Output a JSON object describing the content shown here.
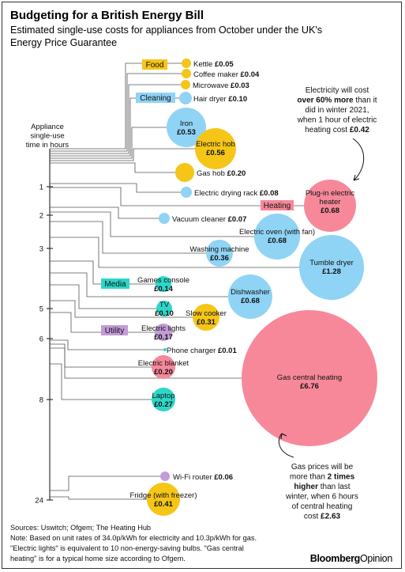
{
  "header": {
    "title": "Budgeting for a British Energy Bill",
    "subtitle_line1": "Estimated single-use costs for appliances from October under the UK's",
    "subtitle_line2": "Energy Price Guarantee"
  },
  "colors": {
    "Food": "#f5c518",
    "Cleaning": "#8fd3f5",
    "Heating": "#f7889a",
    "Media": "#2cd7c9",
    "Utility": "#c39bd7",
    "axis": "#555555"
  },
  "chart_data": {
    "type": "bubble-timeline",
    "axis": {
      "title_lines": [
        "Appliance",
        "single-use",
        "time in hours"
      ],
      "ticks": [
        "1",
        "2",
        "3",
        "5",
        "6",
        "8",
        "24"
      ]
    },
    "categories": [
      {
        "name": "Food"
      },
      {
        "name": "Cleaning"
      },
      {
        "name": "Heating"
      },
      {
        "name": "Media"
      },
      {
        "name": "Utility"
      }
    ],
    "items": [
      {
        "name": "Kettle",
        "cost": "£0.05",
        "value": 0.05,
        "category": "Food"
      },
      {
        "name": "Coffee maker",
        "cost": "£0.04",
        "value": 0.04,
        "category": "Food"
      },
      {
        "name": "Microwave",
        "cost": "£0.03",
        "value": 0.03,
        "category": "Food"
      },
      {
        "name": "Hair dryer",
        "cost": "£0.10",
        "value": 0.1,
        "category": "Cleaning"
      },
      {
        "name": "Iron",
        "cost": "£0.53",
        "value": 0.53,
        "category": "Cleaning"
      },
      {
        "name": "Electric hob",
        "cost": "£0.56",
        "value": 0.56,
        "category": "Food"
      },
      {
        "name": "Gas hob",
        "cost": "£0.20",
        "value": 0.2,
        "category": "Food"
      },
      {
        "name": "Electric drying rack",
        "cost": "£0.08",
        "value": 0.08,
        "category": "Cleaning"
      },
      {
        "name": "Plug-in electric heater",
        "cost": "£0.68",
        "value": 0.68,
        "category": "Heating"
      },
      {
        "name": "Vacuum cleaner",
        "cost": "£0.07",
        "value": 0.07,
        "category": "Cleaning"
      },
      {
        "name": "Electric oven (with fan)",
        "cost": "£0.68",
        "value": 0.68,
        "category": "Cleaning"
      },
      {
        "name": "Washing machine",
        "cost": "£0.36",
        "value": 0.36,
        "category": "Cleaning"
      },
      {
        "name": "Tumble dryer",
        "cost": "£1.28",
        "value": 1.28,
        "category": "Cleaning"
      },
      {
        "name": "Games console",
        "cost": "£0.14",
        "value": 0.14,
        "category": "Media"
      },
      {
        "name": "Dishwasher",
        "cost": "£0.68",
        "value": 0.68,
        "category": "Cleaning"
      },
      {
        "name": "TV",
        "cost": "£0.10",
        "value": 0.1,
        "category": "Media"
      },
      {
        "name": "Slow cooker",
        "cost": "£0.31",
        "value": 0.31,
        "category": "Food"
      },
      {
        "name": "Electric lights",
        "cost": "£0.17",
        "value": 0.17,
        "category": "Utility"
      },
      {
        "name": "Phone charger",
        "cost": "£0.01",
        "value": 0.01,
        "category": "Media"
      },
      {
        "name": "Electric blanket",
        "cost": "£0.20",
        "value": 0.2,
        "category": "Heating"
      },
      {
        "name": "Gas central heating",
        "cost": "£6.76",
        "value": 6.76,
        "category": "Heating"
      },
      {
        "name": "Laptop",
        "cost": "£0.27",
        "value": 0.27,
        "category": "Media"
      },
      {
        "name": "Wi-Fi router",
        "cost": "£0.06",
        "value": 0.06,
        "category": "Utility"
      },
      {
        "name": "Fridge (with freezer)",
        "cost": "£0.41",
        "value": 0.41,
        "category": "Food"
      }
    ],
    "annotations": [
      {
        "id": "electricity",
        "lines": [
          [
            {
              "t": "Electricity will cost",
              "b": false
            }
          ],
          [
            {
              "t": "over 60% more",
              "b": true
            },
            {
              "t": " than it",
              "b": false
            }
          ],
          [
            {
              "t": "did in winter 2021,",
              "b": false
            }
          ],
          [
            {
              "t": "when 1 hour of electric",
              "b": false
            }
          ],
          [
            {
              "t": "heating cost ",
              "b": false
            },
            {
              "t": "£0.42",
              "b": true
            }
          ]
        ]
      },
      {
        "id": "gas",
        "lines": [
          [
            {
              "t": "Gas prices will be",
              "b": false
            }
          ],
          [
            {
              "t": "more than ",
              "b": false
            },
            {
              "t": "2 times",
              "b": true
            }
          ],
          [
            {
              "t": "higher",
              "b": true
            },
            {
              "t": " than last",
              "b": false
            }
          ],
          [
            {
              "t": "winter, when 6 hours",
              "b": false
            }
          ],
          [
            {
              "t": "of central heating",
              "b": false
            }
          ],
          [
            {
              "t": "cost ",
              "b": false
            },
            {
              "t": "£2.63",
              "b": true
            }
          ]
        ]
      }
    ]
  },
  "footer": {
    "sources": "Sources: Uswitch; Ofgem; The Heating Hub",
    "note_line1": "Note: Based on unit rates of 34.0p/kWh for electricity and 10.3p/kWh for gas.",
    "note_line2": "\"Electric lights\" is equivalent to 10 non-energy-saving bulbs. \"Gas central",
    "note_line3": "heating\" is for a typical home size according to Ofgem."
  },
  "brand": {
    "part1": "Bloomberg",
    "part2": "Opinion"
  }
}
